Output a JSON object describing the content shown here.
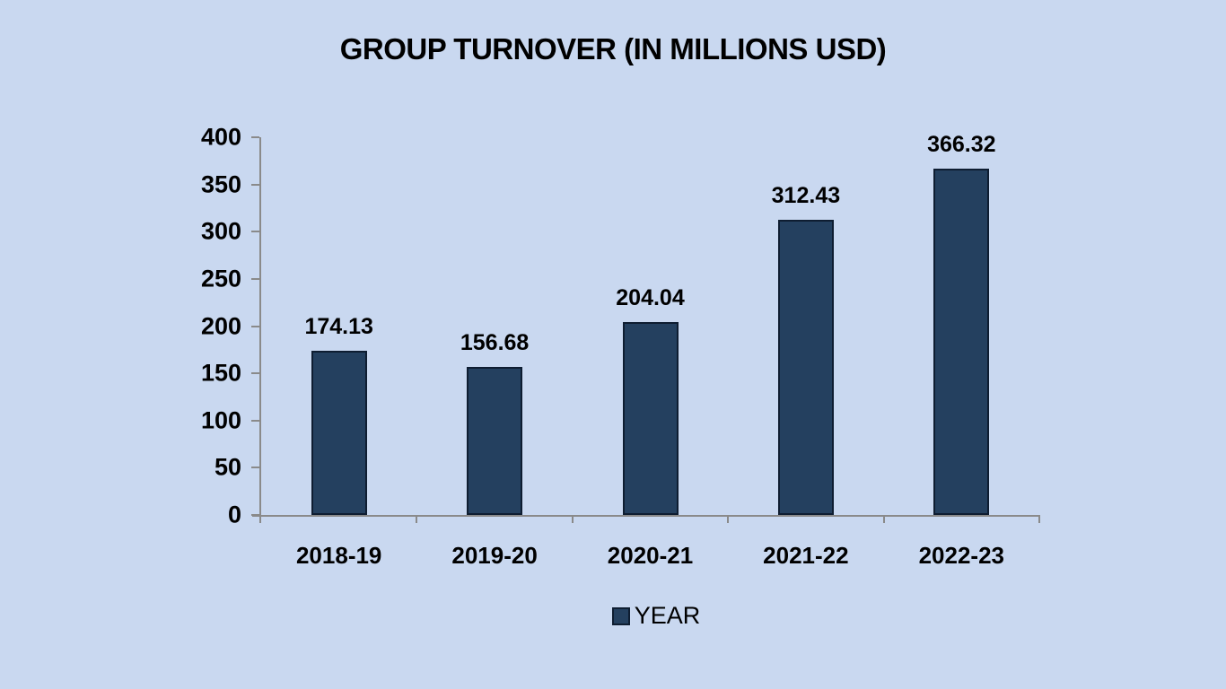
{
  "chart_data": {
    "type": "bar",
    "title": "GROUP TURNOVER (IN MILLIONS USD)",
    "categories": [
      "2018-19",
      "2019-20",
      "2020-21",
      "2021-22",
      "2022-23"
    ],
    "series": [
      {
        "name": "YEAR",
        "values": [
          174.13,
          156.68,
          204.04,
          312.43,
          366.32
        ],
        "data_labels": [
          "174.13",
          "156.68",
          "204.04",
          "312.43",
          "366.32"
        ]
      }
    ],
    "xlabel": "",
    "ylabel": "",
    "ylim": [
      0,
      400
    ],
    "yticks": [
      0,
      50,
      100,
      150,
      200,
      250,
      300,
      350,
      400
    ],
    "grid": false,
    "legend": {
      "labels": [
        "YEAR"
      ],
      "position": "bottom"
    }
  },
  "colors": {
    "background": "#c9d8f0",
    "bar_fill": "#24405f",
    "bar_border": "#0e1d31",
    "axis": "#8a8a8a",
    "text": "#000000"
  }
}
